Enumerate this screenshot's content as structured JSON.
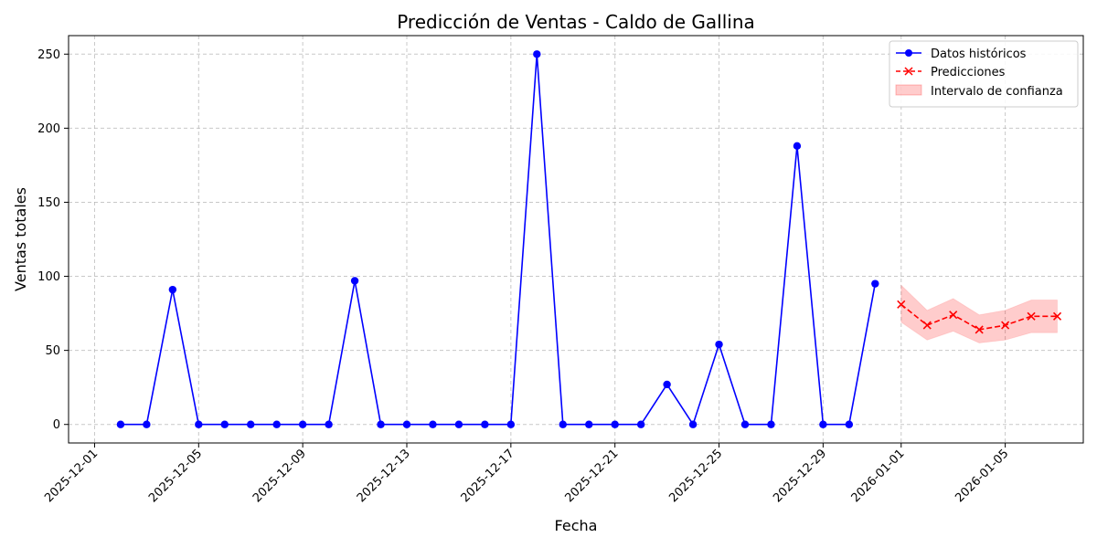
{
  "chart_data": {
    "type": "line",
    "title": "Predicción de Ventas - Caldo de Gallina",
    "xlabel": "Fecha",
    "ylabel": "Ventas totales",
    "xlim": [
      "2025-11-30",
      "2026-01-08"
    ],
    "ylim": [
      -12.5,
      262.5
    ],
    "grid": true,
    "legend_position": "top-right",
    "x_ticks": [
      "2025-12-01",
      "2025-12-05",
      "2025-12-09",
      "2025-12-13",
      "2025-12-17",
      "2025-12-21",
      "2025-12-25",
      "2025-12-29",
      "2026-01-01",
      "2026-01-05"
    ],
    "y_ticks": [
      0,
      50,
      100,
      150,
      200,
      250
    ],
    "series": [
      {
        "name": "Datos históricos",
        "color": "#0000ff",
        "marker": "circle",
        "line_style": "solid",
        "x": [
          "2025-12-02",
          "2025-12-03",
          "2025-12-04",
          "2025-12-05",
          "2025-12-06",
          "2025-12-07",
          "2025-12-08",
          "2025-12-09",
          "2025-12-10",
          "2025-12-11",
          "2025-12-12",
          "2025-12-13",
          "2025-12-14",
          "2025-12-15",
          "2025-12-16",
          "2025-12-17",
          "2025-12-18",
          "2025-12-19",
          "2025-12-20",
          "2025-12-21",
          "2025-12-22",
          "2025-12-23",
          "2025-12-24",
          "2025-12-25",
          "2025-12-26",
          "2025-12-27",
          "2025-12-28",
          "2025-12-29",
          "2025-12-30",
          "2025-12-31"
        ],
        "values": [
          0,
          0,
          91,
          0,
          0,
          0,
          0,
          0,
          0,
          97,
          0,
          0,
          0,
          0,
          0,
          0,
          250,
          0,
          0,
          0,
          0,
          27,
          0,
          54,
          0,
          0,
          188,
          0,
          0,
          95
        ]
      },
      {
        "name": "Predicciones",
        "color": "#ff0000",
        "marker": "x",
        "line_style": "dashed",
        "x": [
          "2026-01-01",
          "2026-01-02",
          "2026-01-03",
          "2026-01-04",
          "2026-01-05",
          "2026-01-06",
          "2026-01-07"
        ],
        "values": [
          81,
          67,
          74,
          64,
          67,
          73,
          73
        ]
      }
    ],
    "confidence_band": {
      "name": "Intervalo de confianza",
      "color": "#ff0000",
      "opacity": 0.2,
      "x": [
        "2026-01-01",
        "2026-01-02",
        "2026-01-03",
        "2026-01-04",
        "2026-01-05",
        "2026-01-06",
        "2026-01-07"
      ],
      "lower": [
        69,
        57,
        63,
        55,
        57,
        62,
        62
      ],
      "upper": [
        94,
        77,
        85,
        74,
        77,
        84,
        84
      ]
    }
  }
}
